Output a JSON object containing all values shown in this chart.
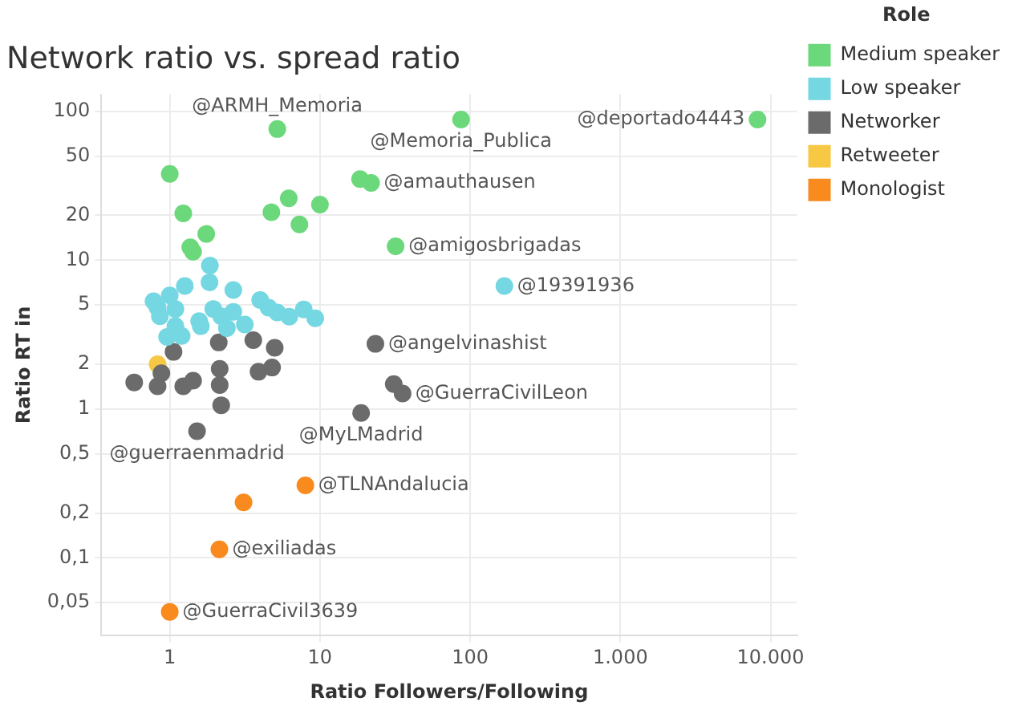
{
  "chart_data": {
    "type": "scatter",
    "title": "Network ratio vs. spread ratio",
    "xlabel": "Ratio Followers/Following",
    "ylabel": "Ratio RT in",
    "legend_title": "Role",
    "legend": "top right",
    "grid": true,
    "marker": "circle",
    "log": "xy",
    "xlim": [
      0.35,
      15000
    ],
    "ylim": [
      0.03,
      130
    ],
    "xticks": [
      1,
      10,
      100,
      {
        "value": 1000,
        "label": "1.000"
      },
      {
        "value": 10000,
        "label": "10.000"
      }
    ],
    "yticks": [
      {
        "value": 0.05,
        "label": "0,05"
      },
      {
        "value": 0.1,
        "label": "0,1"
      },
      {
        "value": 0.2,
        "label": "0,2"
      },
      {
        "value": 0.5,
        "label": "0,5"
      },
      1,
      2,
      5,
      10,
      20,
      50,
      100
    ],
    "series": [
      {
        "name": "Medium speaker",
        "color": "#6cd87c",
        "x": [
          5.2,
          87,
          1,
          1.23,
          1.75,
          1.37,
          1.43,
          4.75,
          6.2,
          7.3,
          10,
          18.5,
          21.9,
          31.9,
          8190
        ],
        "values": [
          76,
          88,
          38,
          20.6,
          15,
          12.2,
          11.4,
          21,
          26,
          17.4,
          23.6,
          35,
          33,
          12.4,
          88
        ]
      },
      {
        "name": "Low speaker",
        "color": "#74d7e2",
        "x": [
          1.85,
          1.84,
          1.26,
          1,
          0.78,
          0.83,
          1.09,
          0.86,
          1.09,
          1.2,
          0.96,
          1.57,
          1.61,
          2.65,
          1.95,
          2.2,
          2.65,
          2.4,
          3.16,
          4,
          4.55,
          5.2,
          6.25,
          7.8,
          9.3,
          169
        ],
        "values": [
          9.2,
          7.1,
          6.7,
          5.8,
          5.3,
          4.8,
          4.7,
          4.2,
          3.6,
          3.1,
          3.05,
          3.9,
          3.6,
          6.3,
          4.7,
          4.2,
          4.5,
          3.5,
          3.7,
          5.4,
          4.8,
          4.45,
          4.17,
          4.67,
          4.07,
          6.7
        ]
      },
      {
        "name": "Networker",
        "color": "#6b6b6b",
        "x": [
          1.06,
          2.12,
          3.6,
          5,
          0.88,
          0.58,
          0.83,
          1.23,
          1.43,
          2.15,
          2.15,
          2.2,
          3.9,
          4.8,
          18.8,
          31,
          35.5,
          23.4,
          1.52
        ],
        "values": [
          2.42,
          2.8,
          2.9,
          2.58,
          1.74,
          1.51,
          1.42,
          1.42,
          1.55,
          1.86,
          1.45,
          1.06,
          1.78,
          1.9,
          0.94,
          1.47,
          1.27,
          2.74,
          0.71
        ]
      },
      {
        "name": "Retweeter",
        "color": "#f7c843",
        "x": [
          0.83
        ],
        "values": [
          2
        ]
      },
      {
        "name": "Monologist",
        "color": "#f98a1e",
        "x": [
          8,
          3.1,
          2.14,
          1
        ],
        "values": [
          0.307,
          0.236,
          0.114,
          0.0434
        ]
      }
    ],
    "annotations": [
      {
        "text": "@deportado4443",
        "x": 8190,
        "y": 88
      },
      {
        "text": "@Memoria_Publica",
        "x": 87,
        "y": 88
      },
      {
        "text": "@ARMH_Memoria",
        "x": 5.2,
        "y": 76
      },
      {
        "text": "@amauthausen",
        "x": 21.9,
        "y": 33
      },
      {
        "text": "@amigosbrigadas",
        "x": 31.9,
        "y": 12.4
      },
      {
        "text": "@19391936",
        "x": 169,
        "y": 6.7
      },
      {
        "text": "@angelvinashist",
        "x": 23.4,
        "y": 2.74
      },
      {
        "text": "@GuerraCivilLeon",
        "x": 35.5,
        "y": 1.27
      },
      {
        "text": "@MyLMadrid",
        "x": 18.8,
        "y": 0.94
      },
      {
        "text": "@guerraenmadrid",
        "x": 1.52,
        "y": 0.71
      },
      {
        "text": "@TLNAndalucia",
        "x": 8,
        "y": 0.307
      },
      {
        "text": "@exiliadas",
        "x": 2.14,
        "y": 0.114
      },
      {
        "text": "@GuerraCivil3639",
        "x": 1,
        "y": 0.0434
      }
    ]
  }
}
